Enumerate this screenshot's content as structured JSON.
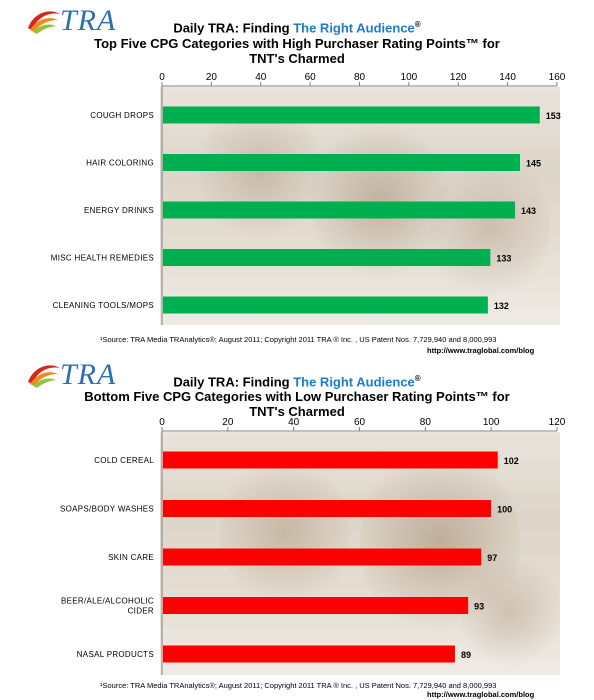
{
  "header_top": {
    "logo": "TRA",
    "line1_prefix": "Daily TRA: Finding ",
    "line1_accent": "The Right Audience",
    "line1_reg": "®",
    "line2": "Top Five CPG Categories with High Purchaser Rating Points™ for",
    "line3": "TNT's Charmed"
  },
  "header_bottom": {
    "logo": "TRA",
    "line1_prefix": "Daily TRA: Finding ",
    "line1_accent": "The Right Audience",
    "line1_reg": "®",
    "line2": "Bottom Five CPG Categories with Low Purchaser Rating Points™ for",
    "line3": "TNT's Charmed"
  },
  "footer_top": {
    "source": "¹Source: TRA Media TRAnalytics®; August 2011; Copyright 2011 TRA ® Inc. , US Patent Nos. 7,729,940 and 8,000,993",
    "url": "http://www.traglobal.com/blog"
  },
  "footer_bottom": {
    "source": "¹Source: TRA Media TRAnalytics®; August 2011; Copyright 2011 TRA ® Inc. , US Patent Nos. 7,729,940 and 8,000,993",
    "url": "http://www.traglobal.com/blog"
  },
  "colors": {
    "top_bar": "#00b050",
    "bottom_bar": "#ff0000",
    "title_accent": "#1f7ac9"
  },
  "chart_data": [
    {
      "type": "bar",
      "orientation": "horizontal",
      "categories": [
        "COUGH DROPS",
        "HAIR COLORING",
        "ENERGY DRINKS",
        "MISC HEALTH REMEDIES",
        "CLEANING TOOLS/MOPS"
      ],
      "values": [
        153,
        145,
        143,
        133,
        132
      ],
      "value_labels": [
        "153",
        "145",
        "143",
        "133",
        "132"
      ],
      "xlim": [
        0,
        160
      ],
      "ticks": [
        0,
        20,
        40,
        60,
        80,
        100,
        120,
        140,
        160
      ],
      "tick_labels": [
        "0",
        "20",
        "40",
        "60",
        "80",
        "100",
        "120",
        "140",
        "160"
      ],
      "axis_position": "top",
      "grid": false,
      "bar_color": "#00b050"
    },
    {
      "type": "bar",
      "orientation": "horizontal",
      "categories": [
        "COLD CEREAL",
        "SOAPS/BODY WASHES",
        "SKIN CARE",
        "BEER/ALE/ALCOHOLIC CIDER",
        "NASAL PRODUCTS"
      ],
      "category_lines": [
        [
          "COLD CEREAL"
        ],
        [
          "SOAPS/BODY WASHES"
        ],
        [
          "SKIN CARE"
        ],
        [
          "BEER/ALE/ALCOHOLIC",
          "CIDER"
        ],
        [
          "NASAL PRODUCTS"
        ]
      ],
      "values": [
        102,
        100,
        97,
        93,
        89
      ],
      "value_labels": [
        "102",
        "100",
        "97",
        "93",
        "89"
      ],
      "xlim": [
        0,
        120
      ],
      "ticks": [
        0,
        20,
        40,
        60,
        80,
        100,
        120
      ],
      "tick_labels": [
        "0",
        "20",
        "40",
        "60",
        "80",
        "100",
        "120"
      ],
      "axis_position": "top",
      "grid": false,
      "bar_color": "#ff0000"
    }
  ]
}
